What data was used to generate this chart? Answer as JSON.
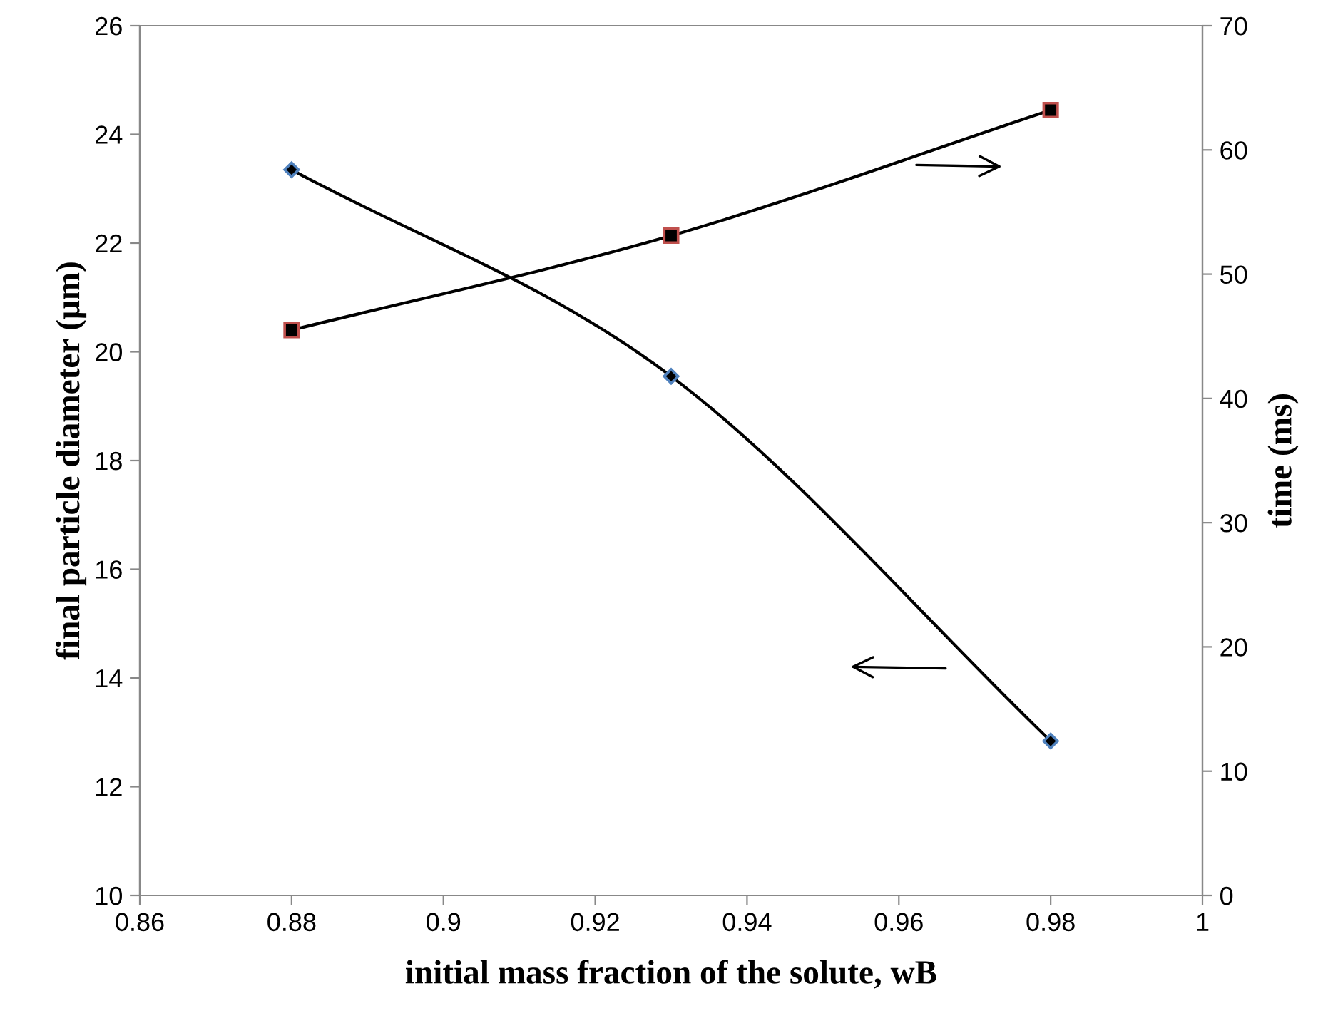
{
  "chart_data": {
    "type": "line",
    "xlabel": "initial mass fraction of the solute, wB",
    "ylabel": "final particle diameter (μm)",
    "y2label": "time (ms)",
    "x": [
      0.88,
      0.93,
      0.98
    ],
    "series": [
      {
        "color": "#000000",
        "marker": "diamond",
        "values": [
          23.35,
          19.55,
          12.84
        ]
      },
      {
        "color": "#000000",
        "marker": "square",
        "axis": "y2",
        "values": [
          45.5,
          53.1,
          63.2
        ]
      }
    ],
    "xlim": [
      0.86,
      1
    ],
    "xticks": [
      0.86,
      0.88,
      0.9,
      0.92,
      0.94,
      0.96,
      0.98,
      1
    ],
    "ylim": [
      10,
      26
    ],
    "yticks": [
      10,
      12,
      14,
      16,
      18,
      20,
      22,
      24,
      26
    ],
    "y2lim": [
      0,
      70
    ],
    "y2ticks": [
      0,
      10,
      20,
      30,
      40,
      50,
      60,
      70
    ],
    "grid": false,
    "legend": false,
    "line_style": "solid"
  }
}
